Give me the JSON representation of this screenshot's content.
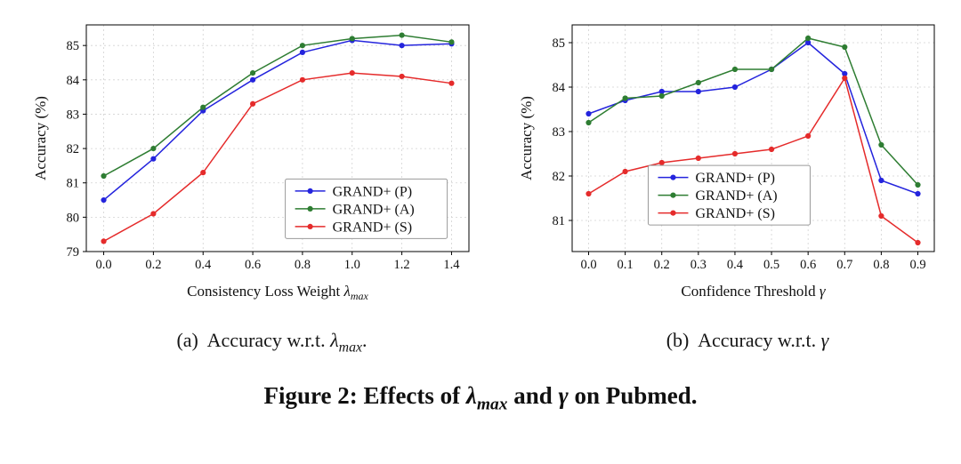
{
  "page": {
    "background": "#ffffff"
  },
  "captions": {
    "a": {
      "prefix": "(a)  Accuracy w.r.t. ",
      "symbol": "λ",
      "subscript": "max",
      "suffix": "."
    },
    "b": {
      "prefix": "(b)  Accuracy w.r.t. ",
      "symbol": "γ",
      "subscript": "",
      "suffix": ""
    }
  },
  "figure_caption": {
    "prefix": "Figure 2: Effects of ",
    "symbol1": "λ",
    "subscript1": "max",
    "middle": " and ",
    "symbol2": "γ",
    "suffix": " on Pubmed."
  },
  "chart_data": [
    {
      "id": "chart-a",
      "type": "line",
      "title": "",
      "xlabel": {
        "prefix": "Consistency Loss Weight ",
        "symbol": "λ",
        "subscript": "max"
      },
      "ylabel": "Accuracy (%)",
      "x": [
        0.0,
        0.2,
        0.4,
        0.6,
        0.8,
        1.0,
        1.2,
        1.4
      ],
      "xtick_labels": [
        "0.0",
        "0.2",
        "0.4",
        "0.6",
        "0.8",
        "1.0",
        "1.2",
        "1.4"
      ],
      "ytick_values": [
        79,
        80,
        81,
        82,
        83,
        84,
        85
      ],
      "ytick_labels": [
        "79",
        "80",
        "81",
        "82",
        "83",
        "84",
        "85"
      ],
      "xlim": [
        -0.07,
        1.47
      ],
      "ylim": [
        79.0,
        85.6
      ],
      "grid": true,
      "legend": {
        "position_fraction": {
          "x": 0.52,
          "y": 0.68
        }
      },
      "series": [
        {
          "name": "GRAND+ (P)",
          "color": "#2424dd",
          "marker": "circle",
          "values": [
            80.5,
            81.7,
            83.1,
            84.0,
            84.8,
            85.15,
            85.0,
            85.05
          ]
        },
        {
          "name": "GRAND+ (A)",
          "color": "#2e7d32",
          "marker": "circle",
          "values": [
            81.2,
            82.0,
            83.2,
            84.2,
            85.0,
            85.2,
            85.3,
            85.1
          ]
        },
        {
          "name": "GRAND+ (S)",
          "color": "#e52b2b",
          "marker": "circle",
          "values": [
            79.3,
            80.1,
            81.3,
            83.3,
            84.0,
            84.2,
            84.1,
            83.9
          ]
        }
      ]
    },
    {
      "id": "chart-b",
      "type": "line",
      "title": "",
      "xlabel": {
        "prefix": "Confidence Threshold ",
        "symbol": "γ",
        "subscript": ""
      },
      "ylabel": "Accuracy (%)",
      "x": [
        0.0,
        0.1,
        0.2,
        0.3,
        0.4,
        0.5,
        0.6,
        0.7,
        0.8,
        0.9
      ],
      "xtick_labels": [
        "0.0",
        "0.1",
        "0.2",
        "0.3",
        "0.4",
        "0.5",
        "0.6",
        "0.7",
        "0.8",
        "0.9"
      ],
      "ytick_values": [
        81,
        82,
        83,
        84,
        85
      ],
      "ytick_labels": [
        "81",
        "82",
        "83",
        "84",
        "85"
      ],
      "xlim": [
        -0.045,
        0.945
      ],
      "ylim": [
        80.3,
        85.4
      ],
      "grid": true,
      "legend": {
        "position_fraction": {
          "x": 0.21,
          "y": 0.62
        }
      },
      "series": [
        {
          "name": "GRAND+ (P)",
          "color": "#2424dd",
          "marker": "circle",
          "values": [
            83.4,
            83.7,
            83.9,
            83.9,
            84.0,
            84.4,
            85.0,
            84.3,
            81.9,
            81.6
          ]
        },
        {
          "name": "GRAND+ (A)",
          "color": "#2e7d32",
          "marker": "circle",
          "values": [
            83.2,
            83.75,
            83.8,
            84.1,
            84.4,
            84.4,
            85.1,
            84.9,
            82.7,
            81.8
          ]
        },
        {
          "name": "GRAND+ (S)",
          "color": "#e52b2b",
          "marker": "circle",
          "values": [
            81.6,
            82.1,
            82.3,
            82.4,
            82.5,
            82.6,
            82.9,
            84.2,
            81.1,
            80.5
          ]
        }
      ]
    }
  ]
}
